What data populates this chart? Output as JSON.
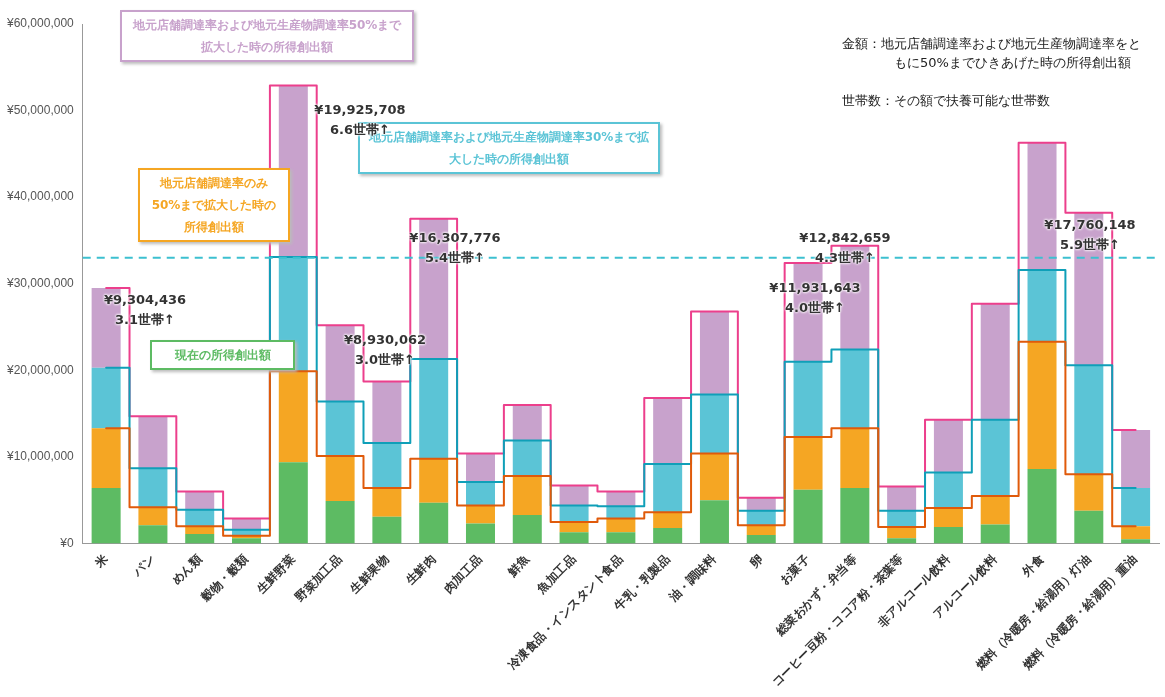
{
  "chart_data": {
    "type": "bar",
    "stacked": true,
    "grid": false,
    "categories": [
      "米",
      "パン",
      "めん類",
      "穀物・穀類",
      "生鮮野菜",
      "野菜加工品",
      "生鮮果物",
      "生鮮肉",
      "肉加工品",
      "鮮魚",
      "魚加工品",
      "冷凍食品・インスタント食品",
      "牛乳・乳製品",
      "油・調味料",
      "卵",
      "お菓子",
      "総菜おかず・弁当等",
      "コーヒー豆粉・ココア粉・茶葉等",
      "非アルコール飲料",
      "アルコール飲料",
      "外食",
      "燃料（冷暖房・給湯用）灯油",
      "燃料（冷暖房・給湯用）重油"
    ],
    "ylim": [
      0,
      60000000
    ],
    "yticks": [
      {
        "value": 0,
        "label": "¥0"
      },
      {
        "value": 10000000,
        "label": "¥10,000,000"
      },
      {
        "value": 20000000,
        "label": "¥20,000,000"
      },
      {
        "value": 30000000,
        "label": "¥30,000,000"
      },
      {
        "value": 40000000,
        "label": "¥40,000,000"
      },
      {
        "value": 50000000,
        "label": "¥50,000,000"
      },
      {
        "value": 60000000,
        "label": "¥60,000,000"
      }
    ],
    "series": [
      {
        "name": "現在の所得創出額",
        "color": "#5dbb63",
        "values": [
          6400000,
          2100000,
          1100000,
          600000,
          9400000,
          4900000,
          3100000,
          4700000,
          2300000,
          3300000,
          1300000,
          1300000,
          1800000,
          5000000,
          1000000,
          6200000,
          6400000,
          600000,
          1900000,
          2200000,
          8600000,
          3800000,
          500000
        ]
      },
      {
        "name": "地元店舗調達率のみ50%まで拡大した時の所得創出額",
        "color": "#f5a623",
        "values": [
          6900000,
          2100000,
          900000,
          300000,
          10500000,
          5200000,
          3300000,
          5100000,
          2100000,
          4500000,
          1200000,
          1600000,
          1800000,
          5400000,
          1100000,
          6100000,
          6900000,
          1300000,
          2200000,
          3300000,
          14700000,
          4200000,
          1500000
        ]
      },
      {
        "name": "地元店舗調達率および地元生産物調達率30%まで拡大した時の所得創出額",
        "color": "#5bc4d6",
        "values": [
          7000000,
          4500000,
          1900000,
          700000,
          13200000,
          6300000,
          5200000,
          11500000,
          2700000,
          4100000,
          1900000,
          1400000,
          5600000,
          6800000,
          1700000,
          8700000,
          9100000,
          1900000,
          4100000,
          8800000,
          8300000,
          12600000,
          4400000
        ]
      },
      {
        "name": "地元店舗調達率および地元生産物調達率50%まで拡大した時の所得創出額",
        "color": "#c8a2cc",
        "values": [
          9200000,
          6000000,
          2100000,
          1300000,
          19800000,
          8800000,
          7100000,
          16200000,
          3300000,
          4100000,
          2300000,
          1700000,
          7600000,
          9600000,
          1500000,
          11400000,
          12000000,
          2800000,
          6100000,
          13400000,
          14700000,
          17600000,
          6700000
        ]
      },
      {
        "type": "step",
        "color": "#e05a0a",
        "values": [
          13300000,
          4200000,
          2000000,
          900000,
          19900000,
          10100000,
          6400000,
          9800000,
          4400000,
          7800000,
          2500000,
          2900000,
          3600000,
          10400000,
          2100000,
          12300000,
          13300000,
          1900000,
          4100000,
          5500000,
          23300000,
          8000000,
          2000000
        ]
      },
      {
        "type": "step",
        "color": "#0f9fb8",
        "values": [
          20300000,
          8700000,
          3900000,
          1600000,
          33100000,
          16400000,
          11600000,
          21300000,
          7100000,
          11900000,
          4400000,
          4300000,
          9200000,
          17200000,
          3800000,
          21000000,
          22400000,
          3800000,
          8200000,
          14300000,
          31600000,
          20600000,
          6400000
        ]
      },
      {
        "type": "step",
        "color": "#ec3f8c",
        "values": [
          29500000,
          14700000,
          6000000,
          2900000,
          52900000,
          25200000,
          18700000,
          37500000,
          10400000,
          16000000,
          6700000,
          6000000,
          16800000,
          26800000,
          5300000,
          32400000,
          34400000,
          6600000,
          14300000,
          27700000,
          46300000,
          38200000,
          13100000
        ]
      }
    ],
    "ref_lines": [
      {
        "axis": "y",
        "value": 33000000,
        "color": "#3cc0d0",
        "line_style": "dashed"
      }
    ],
    "annotations": [
      "¥9,304,436\n3.1世帯↑",
      "¥19,925,708\n6.6世帯↑",
      "¥8,930,062\n3.0世帯↑",
      "¥16,307,776\n5.4世帯↑",
      "¥11,931,643\n4.0世帯↑",
      "¥12,842,659\n4.3世帯↑",
      "¥17,760,148\n5.9世帯↑",
      "金額：地元店舗調達率および地元生産物調達率をともに50%までひきあげた時の所得創出額",
      "世帯数：その額で扶養可能な世帯数"
    ]
  }
}
